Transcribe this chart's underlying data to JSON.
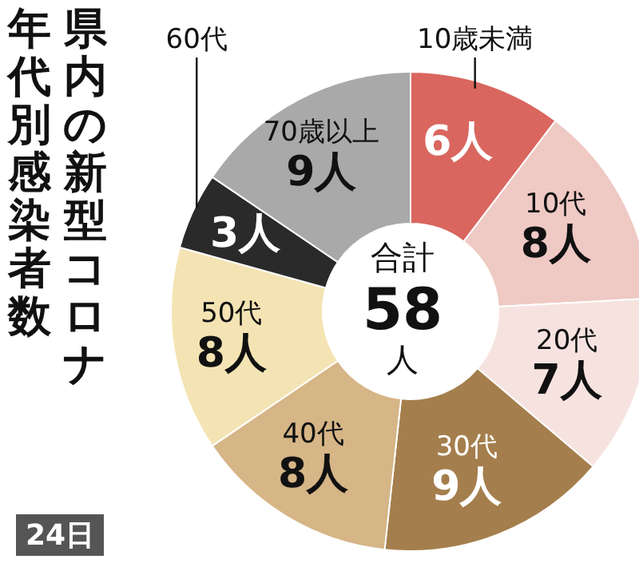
{
  "chart_data": {
    "type": "donut",
    "title": "県内の新型コロナ年代別感染者数",
    "categories": [
      "10歳未満",
      "10代",
      "20代",
      "30代",
      "40代",
      "50代",
      "60代",
      "70歳以上"
    ],
    "values": [
      6,
      8,
      7,
      9,
      8,
      8,
      3,
      9
    ],
    "value_labels": [
      "6人",
      "8人",
      "7人",
      "9人",
      "8人",
      "8人",
      "3人",
      "9人"
    ],
    "colors": [
      "#d9665f",
      "#efc9c4",
      "#f6e3df",
      "#a47e4c",
      "#d6b586",
      "#f4e4b4",
      "#2a2a2a",
      "#a9a9a9"
    ],
    "annotations": [
      "合計",
      "58",
      "人",
      "24日"
    ]
  }
}
